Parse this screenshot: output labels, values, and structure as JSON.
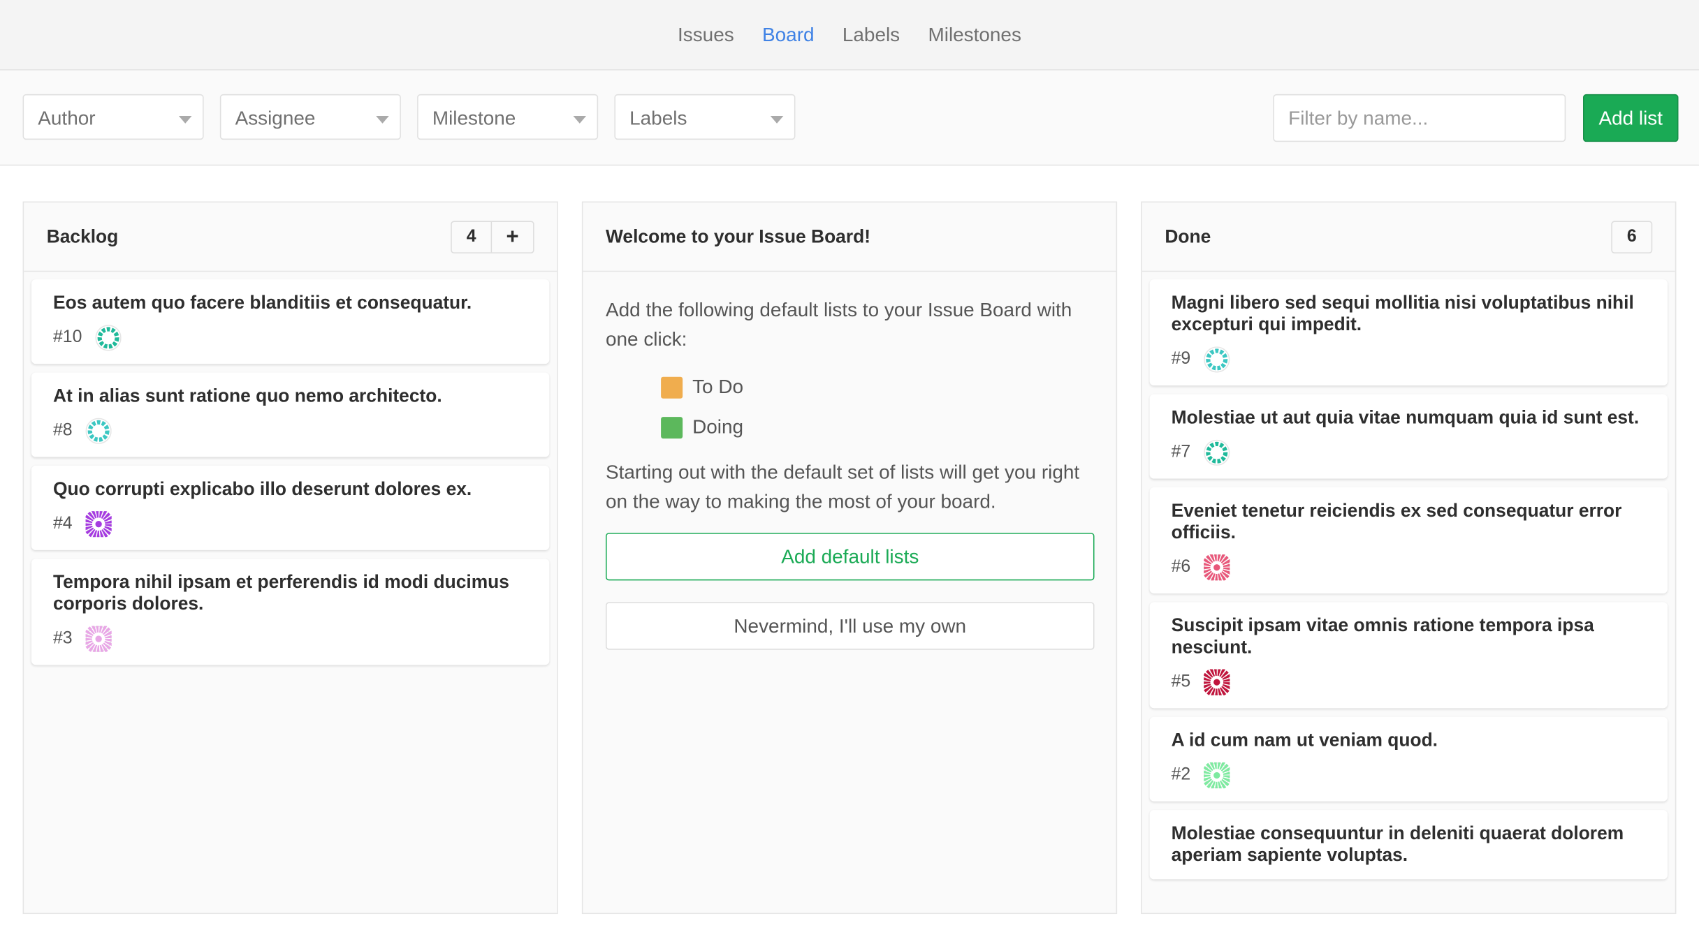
{
  "nav": {
    "items": [
      {
        "label": "Issues",
        "active": false
      },
      {
        "label": "Board",
        "active": true
      },
      {
        "label": "Labels",
        "active": false
      },
      {
        "label": "Milestones",
        "active": false
      }
    ]
  },
  "filters": {
    "author": "Author",
    "assignee": "Assignee",
    "milestone": "Milestone",
    "labels": "Labels",
    "filter_placeholder": "Filter by name...",
    "add_list": "Add list"
  },
  "backlog": {
    "title": "Backlog",
    "count": "4",
    "add_icon": "plus-icon",
    "cards": [
      {
        "title": "Eos autem quo facere blanditiis et consequatur.",
        "number": "#10",
        "avatar_color": "#1fb99a",
        "avatar_style": "ring"
      },
      {
        "title": "At in alias sunt ratione quo nemo architecto.",
        "number": "#8",
        "avatar_color": "#3cc7c2",
        "avatar_style": "ring"
      },
      {
        "title": "Quo corrupti explicabo illo deserunt dolores ex.",
        "number": "#4",
        "avatar_color": "#a53be0",
        "avatar_style": "fill"
      },
      {
        "title": "Tempora nihil ipsam et perferendis id modi ducimus corporis dolores.",
        "number": "#3",
        "avatar_color": "#e8a6e6",
        "avatar_style": "fill"
      }
    ]
  },
  "welcome": {
    "title": "Welcome to your Issue Board!",
    "intro": "Add the following default lists to your Issue Board with one click:",
    "lists": [
      {
        "label": "To Do",
        "color": "#f0ad4e"
      },
      {
        "label": "Doing",
        "color": "#5cb85c"
      }
    ],
    "outro": "Starting out with the default set of lists will get you right on the way to making the most of your board.",
    "add_default": "Add default lists",
    "nevermind": "Nevermind, I'll use my own"
  },
  "done": {
    "title": "Done",
    "count": "6",
    "cards": [
      {
        "title": "Magni libero sed sequi mollitia nisi voluptatibus nihil excepturi qui impedit.",
        "number": "#9",
        "avatar_color": "#3cc7c2",
        "avatar_style": "ring"
      },
      {
        "title": "Molestiae ut aut quia vitae numquam quia id sunt est.",
        "number": "#7",
        "avatar_color": "#1fb99a",
        "avatar_style": "ring"
      },
      {
        "title": "Eveniet tenetur reiciendis ex sed consequatur error officiis.",
        "number": "#6",
        "avatar_color": "#e8577a",
        "avatar_style": "fill"
      },
      {
        "title": "Suscipit ipsam vitae omnis ratione tempora ipsa nesciunt.",
        "number": "#5",
        "avatar_color": "#c0143c",
        "avatar_style": "fill"
      },
      {
        "title": "A id cum nam ut veniam quod.",
        "number": "#2",
        "avatar_color": "#7eeaa0",
        "avatar_style": "fill"
      },
      {
        "title": "Molestiae consequuntur in deleniti quaerat dolorem aperiam sapiente voluptas.",
        "number": "",
        "avatar_color": "",
        "avatar_style": ""
      }
    ]
  }
}
